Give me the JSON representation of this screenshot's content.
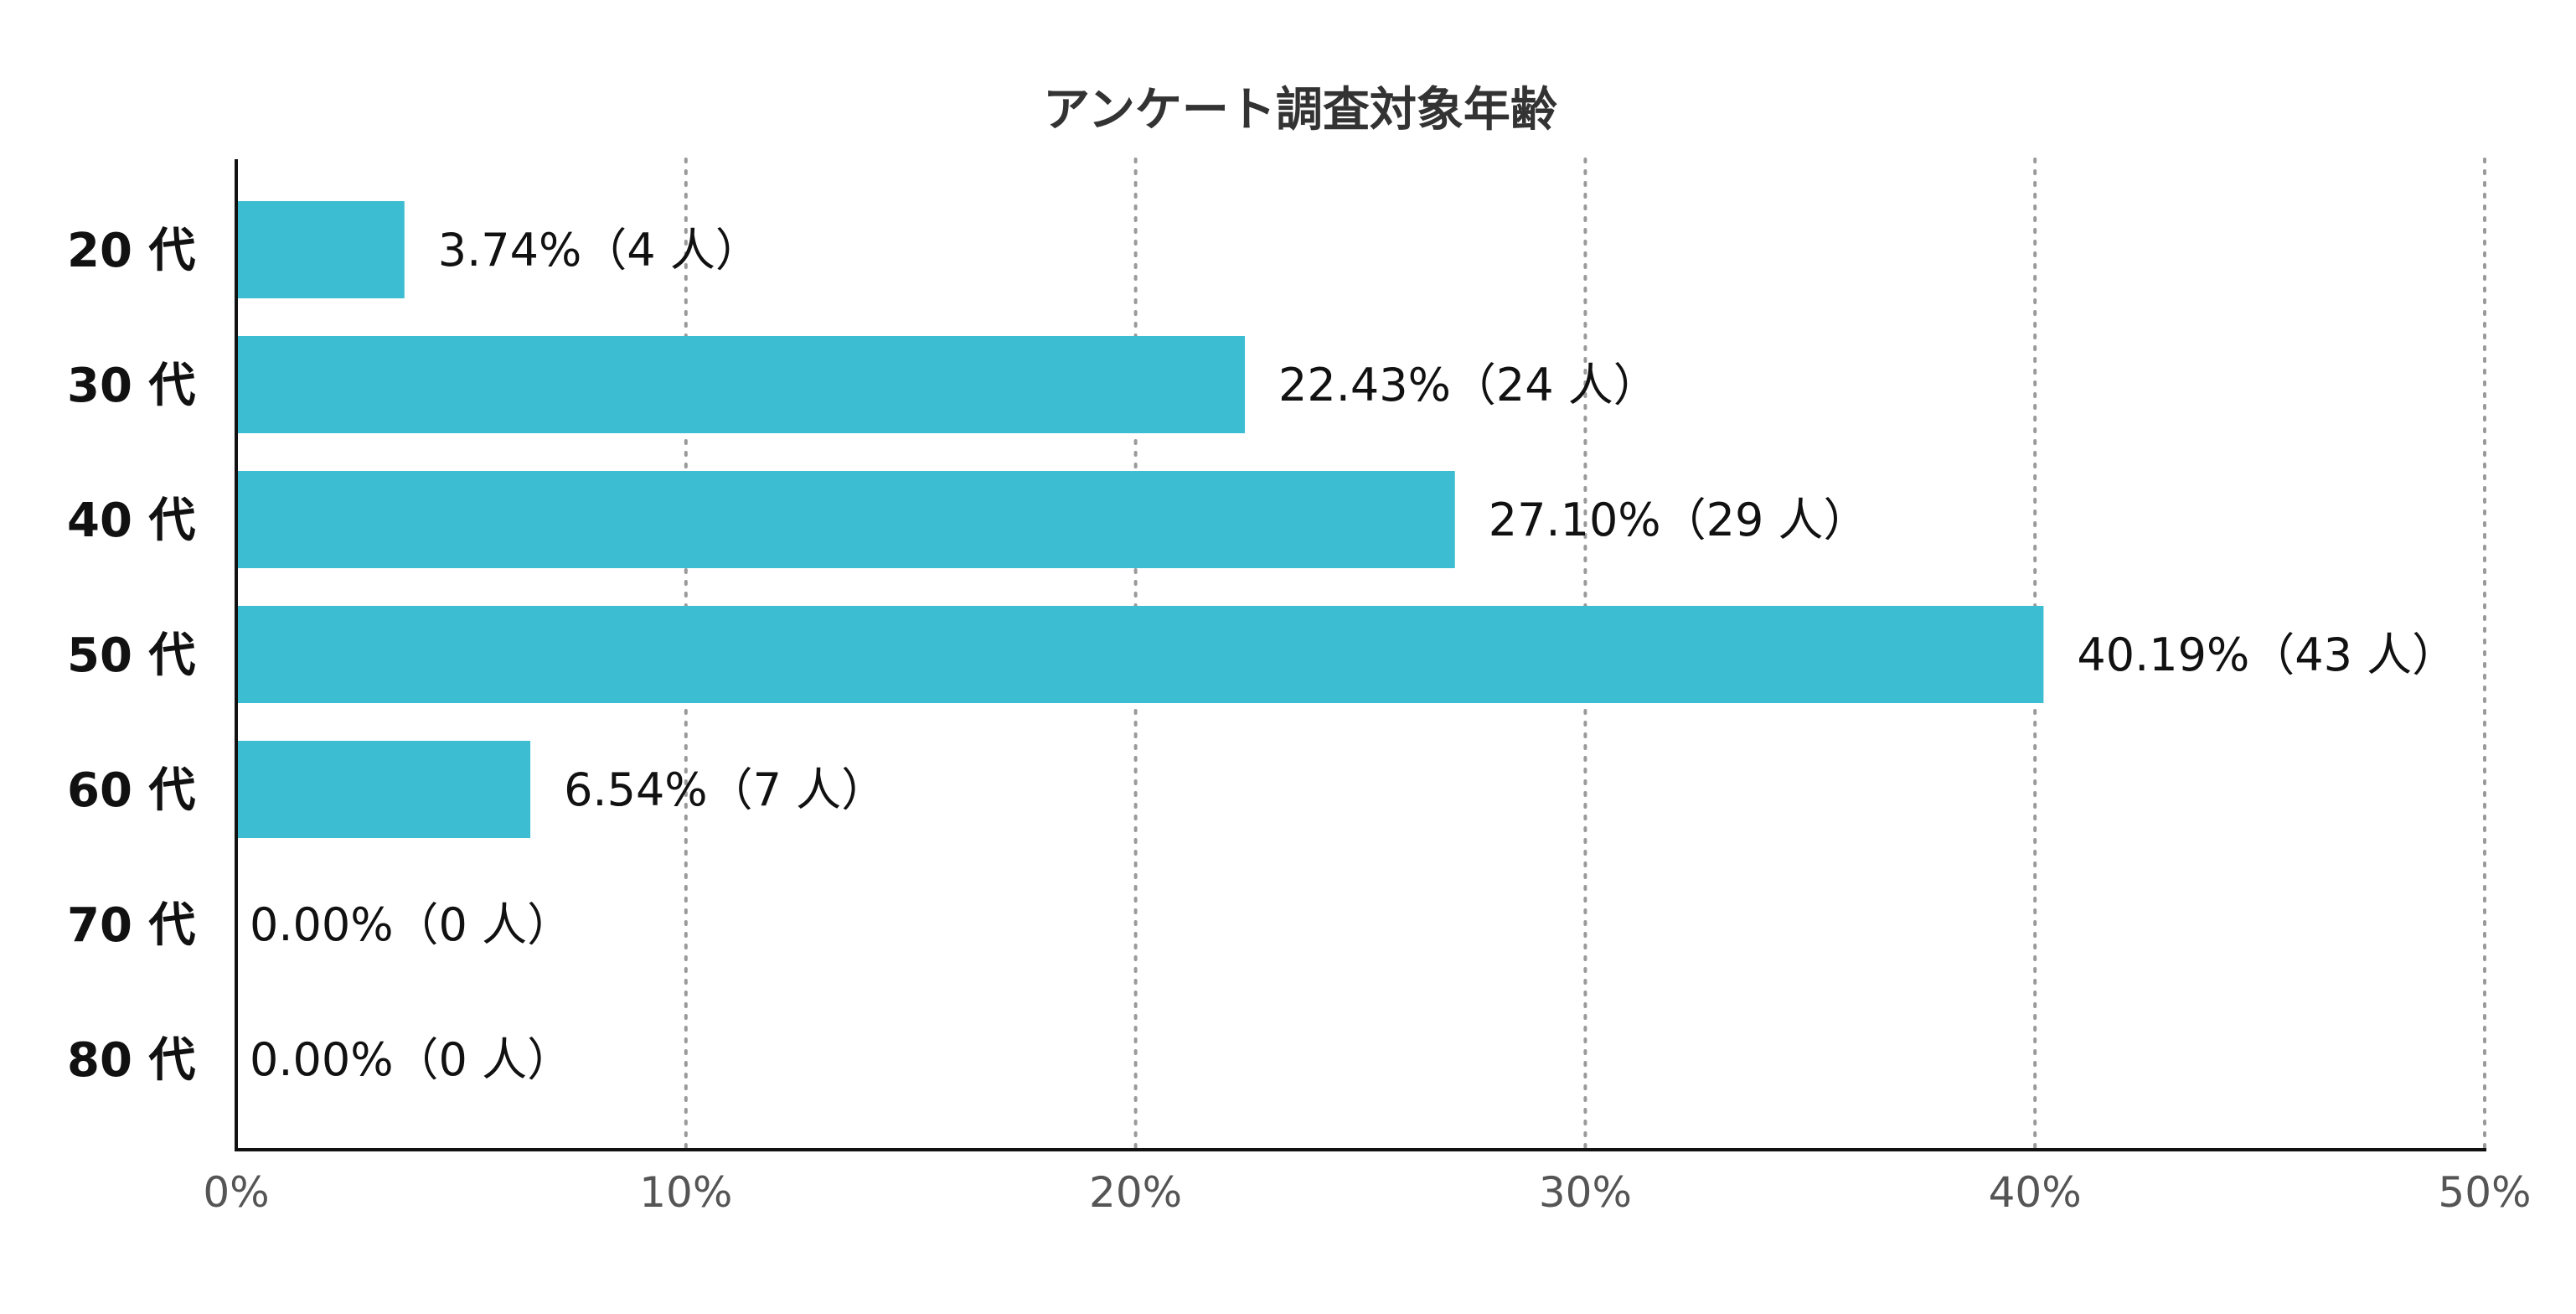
{
  "chart_data": {
    "type": "bar",
    "orientation": "horizontal",
    "title": "アンケート調査対象年齢",
    "categories": [
      "20 代",
      "30 代",
      "40 代",
      "50 代",
      "60 代",
      "70 代",
      "80 代"
    ],
    "values": [
      3.74,
      22.43,
      27.1,
      40.19,
      6.54,
      0.0,
      0.0
    ],
    "data_labels": [
      "3.74%（4 人）",
      "22.43%（24 人）",
      "27.10%（29 人）",
      "40.19%（43 人）",
      "6.54%（7 人）",
      "0.00%（0 人）",
      "0.00%（0 人）"
    ],
    "xlim": [
      0,
      50
    ],
    "xticks": [
      "0%",
      "10%",
      "20%",
      "30%",
      "40%",
      "50%"
    ],
    "xtick_values": [
      0,
      10,
      20,
      30,
      40,
      50
    ],
    "grid": "vertical dotted",
    "bar_color": "#3dbdd2",
    "xlabel": "",
    "ylabel": ""
  }
}
